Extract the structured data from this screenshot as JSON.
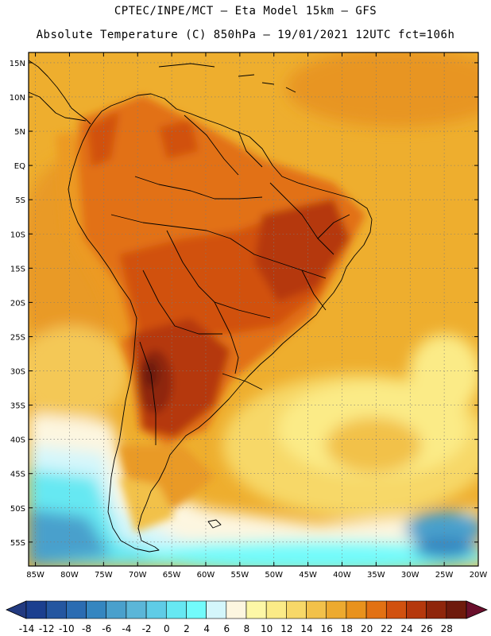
{
  "header": {
    "line1": "CPTEC/INPE/MCT –  Eta Model 15km – GFS",
    "line2": "Absolute Temperature (C) 850hPa – 19/01/2021 12UTC fct=106h"
  },
  "axes": {
    "lat_labels": [
      "15N",
      "10N",
      "5N",
      "EQ",
      "5S",
      "10S",
      "15S",
      "20S",
      "25S",
      "30S",
      "35S",
      "40S",
      "45S",
      "50S",
      "55S"
    ],
    "lat_values": [
      15,
      10,
      5,
      0,
      -5,
      -10,
      -15,
      -20,
      -25,
      -30,
      -35,
      -40,
      -45,
      -50,
      -55
    ],
    "lon_labels": [
      "85W",
      "80W",
      "75W",
      "70W",
      "65W",
      "60W",
      "55W",
      "50W",
      "45W",
      "40W",
      "35W",
      "30W",
      "25W",
      "20W"
    ],
    "lon_values": [
      -85,
      -80,
      -75,
      -70,
      -65,
      -60,
      -55,
      -50,
      -45,
      -40,
      -35,
      -30,
      -25,
      -20
    ],
    "lon_range": [
      -86,
      -20
    ],
    "lat_range": [
      -58.5,
      16.5
    ]
  },
  "colorbar": {
    "labels": [
      "-14",
      "-12",
      "-10",
      "-8",
      "-6",
      "-4",
      "-2",
      "0",
      "2",
      "4",
      "6",
      "8",
      "10",
      "12",
      "14",
      "16",
      "18",
      "20",
      "22",
      "24",
      "26",
      "28"
    ],
    "colors": [
      "#1b3f8f",
      "#2456a0",
      "#2b6cb2",
      "#3586c0",
      "#4aa0cc",
      "#5bb6d8",
      "#5fcce6",
      "#66e8f2",
      "#72fbfb",
      "#d4f6fb",
      "#fdf6e0",
      "#fdf7a6",
      "#fbeb87",
      "#f7d868",
      "#f2c14a",
      "#edaa2f",
      "#e9921c",
      "#e27113",
      "#d1510f",
      "#b5380c",
      "#8f260b",
      "#6e1a0c"
    ]
  }
}
